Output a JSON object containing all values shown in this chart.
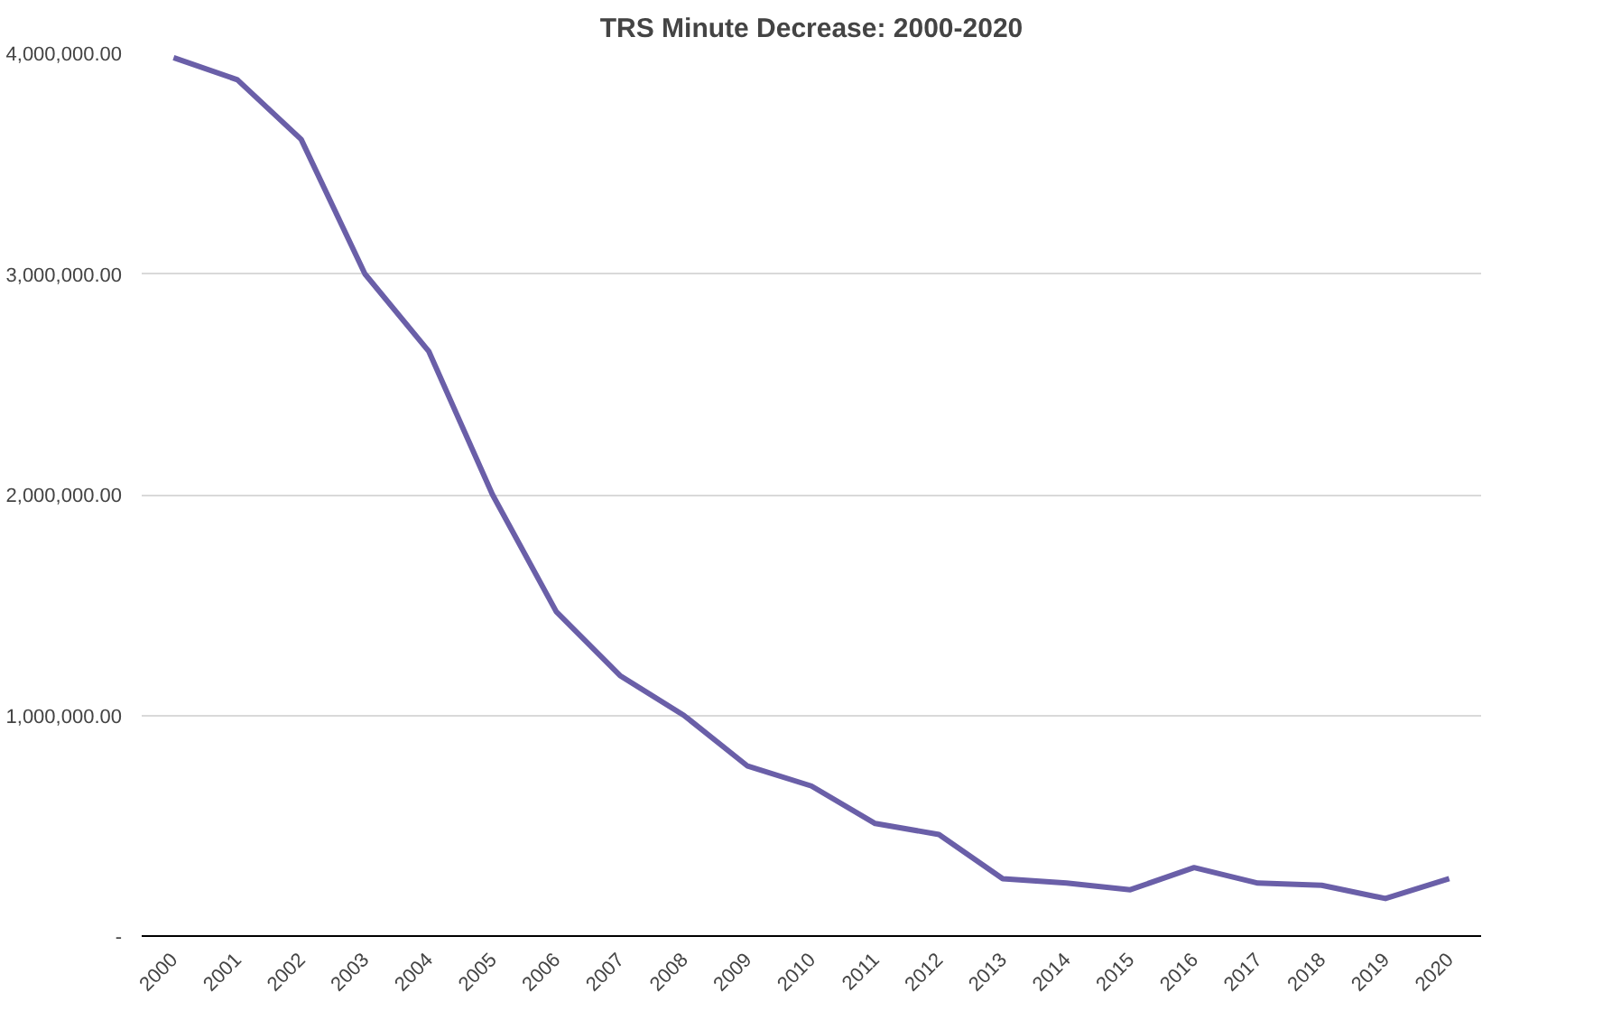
{
  "chart_data": {
    "type": "line",
    "title": "TRS Minute Decrease: 2000-2020",
    "categories": [
      "2000",
      "2001",
      "2002",
      "2003",
      "2004",
      "2005",
      "2006",
      "2007",
      "2008",
      "2009",
      "2010",
      "2011",
      "2012",
      "2013",
      "2014",
      "2015",
      "2016",
      "2017",
      "2018",
      "2019",
      "2020"
    ],
    "series": [
      {
        "color": "#6a5fa8",
        "values": [
          3980000,
          3880000,
          3610000,
          3000000,
          2650000,
          2000000,
          1470000,
          1180000,
          1000000,
          770000,
          680000,
          510000,
          460000,
          260000,
          240000,
          210000,
          310000,
          240000,
          230000,
          170000,
          260000
        ]
      }
    ],
    "ylim": [
      0,
      4000000
    ],
    "yticks": [
      {
        "value": 0,
        "label": "-"
      },
      {
        "value": 1000000,
        "label": "1,000,000.00"
      },
      {
        "value": 2000000,
        "label": "2,000,000.00"
      },
      {
        "value": 3000000,
        "label": "3,000,000.00"
      },
      {
        "value": 4000000,
        "label": "4,000,000.00"
      }
    ],
    "grid": "y",
    "marker": "none",
    "line_style": "solid"
  }
}
